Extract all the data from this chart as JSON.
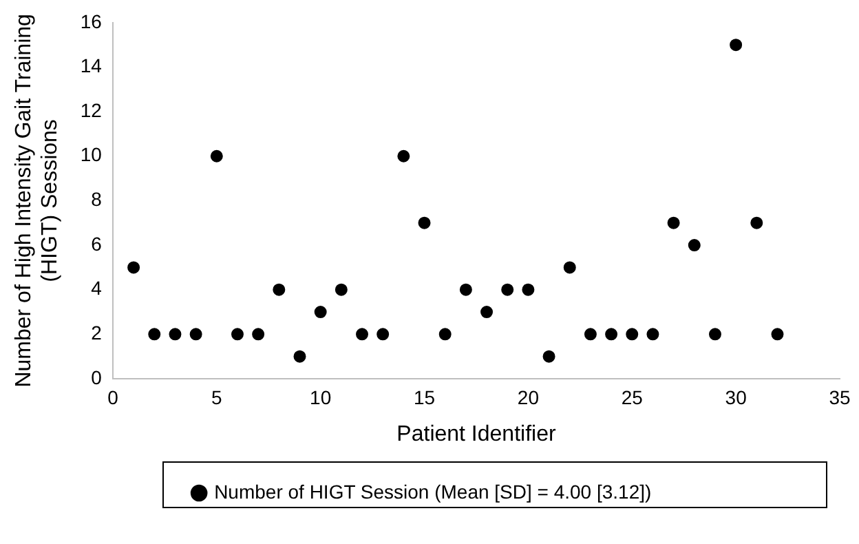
{
  "chart_data": {
    "type": "scatter",
    "xlabel": "Patient Identifier",
    "ylabel": "Number of High Intensity Gait Training (HIGT) Sessions",
    "x": [
      1,
      2,
      3,
      4,
      5,
      6,
      7,
      8,
      9,
      10,
      11,
      12,
      13,
      14,
      15,
      16,
      17,
      18,
      19,
      20,
      21,
      22,
      23,
      24,
      25,
      26,
      27,
      28,
      29,
      30,
      31,
      32
    ],
    "series": [
      {
        "name": "Number of HIGT Session (Mean [SD] = 4.00 [3.12])",
        "color": "#000000",
        "values": [
          5,
          2,
          2,
          2,
          10,
          2,
          2,
          4,
          1,
          3,
          4,
          2,
          2,
          10,
          7,
          2,
          4,
          3,
          4,
          4,
          1,
          5,
          2,
          2,
          2,
          2,
          7,
          6,
          2,
          15,
          7,
          2
        ]
      }
    ],
    "xlim": [
      0,
      35
    ],
    "xticks": [
      0,
      5,
      10,
      15,
      20,
      25,
      30,
      35
    ],
    "ylim": [
      0,
      16
    ],
    "yticks": [
      0,
      2,
      4,
      6,
      8,
      10,
      12,
      14,
      16
    ],
    "grid": false,
    "legend": "bottom",
    "marker": "circle"
  }
}
